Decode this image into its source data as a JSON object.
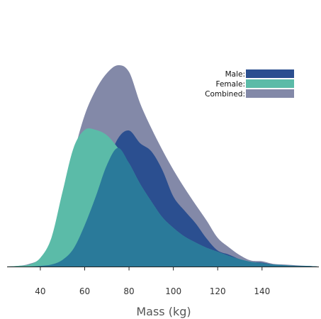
{
  "chart_data": {
    "type": "area",
    "title": "",
    "xlabel": "Mass (kg)",
    "ylabel": "",
    "xlim": [
      25,
      165
    ],
    "ylim": [
      0,
      0.0302
    ],
    "x_ticks": [
      40,
      60,
      80,
      100,
      120,
      140
    ],
    "grid": false,
    "legend_position": "top-right",
    "x": [
      25,
      30,
      35,
      40,
      45,
      50,
      55,
      60,
      65,
      70,
      75,
      80,
      85,
      90,
      95,
      100,
      105,
      110,
      115,
      120,
      125,
      130,
      135,
      140,
      145,
      150,
      155,
      160,
      165
    ],
    "series": [
      {
        "name": "Combined:",
        "color": "#8389a8",
        "values": [
          0,
          0.0001,
          0.0004,
          0.0012,
          0.0038,
          0.0095,
          0.0168,
          0.0227,
          0.0265,
          0.029,
          0.0302,
          0.0292,
          0.0245,
          0.0208,
          0.0175,
          0.0145,
          0.0118,
          0.0093,
          0.0069,
          0.0043,
          0.0029,
          0.0017,
          0.0009,
          0.0008,
          0.0004,
          0.0003,
          0.0002,
          0.0001,
          0
        ]
      },
      {
        "name": "Male:",
        "color": "#2b4f90",
        "values": [
          0,
          0,
          0,
          0.0001,
          0.0003,
          0.001,
          0.0027,
          0.0062,
          0.0105,
          0.0152,
          0.0192,
          0.0204,
          0.0185,
          0.0173,
          0.0145,
          0.0105,
          0.0084,
          0.0065,
          0.0042,
          0.0024,
          0.0018,
          0.0011,
          0.0007,
          0.0006,
          0.0003,
          0.0002,
          0.0001,
          0.0001,
          0
        ]
      },
      {
        "name": "Female:",
        "color": "#5bbba8",
        "values": [
          0,
          0.0001,
          0.0003,
          0.0013,
          0.0043,
          0.0112,
          0.0178,
          0.0205,
          0.0205,
          0.0197,
          0.0178,
          0.0155,
          0.0124,
          0.0098,
          0.0074,
          0.0058,
          0.0045,
          0.0036,
          0.0028,
          0.0022,
          0.0016,
          0.0011,
          0.0007,
          0.0005,
          0.0003,
          0.0002,
          0.0001,
          0.0001,
          0
        ]
      }
    ],
    "legend": [
      {
        "label": "Male:",
        "color": "#2b4f90"
      },
      {
        "label": "Female:",
        "color": "#5bbba8"
      },
      {
        "label": "Combined:",
        "color": "#8389a8"
      }
    ],
    "overlap_color": "#2a7a9a"
  }
}
